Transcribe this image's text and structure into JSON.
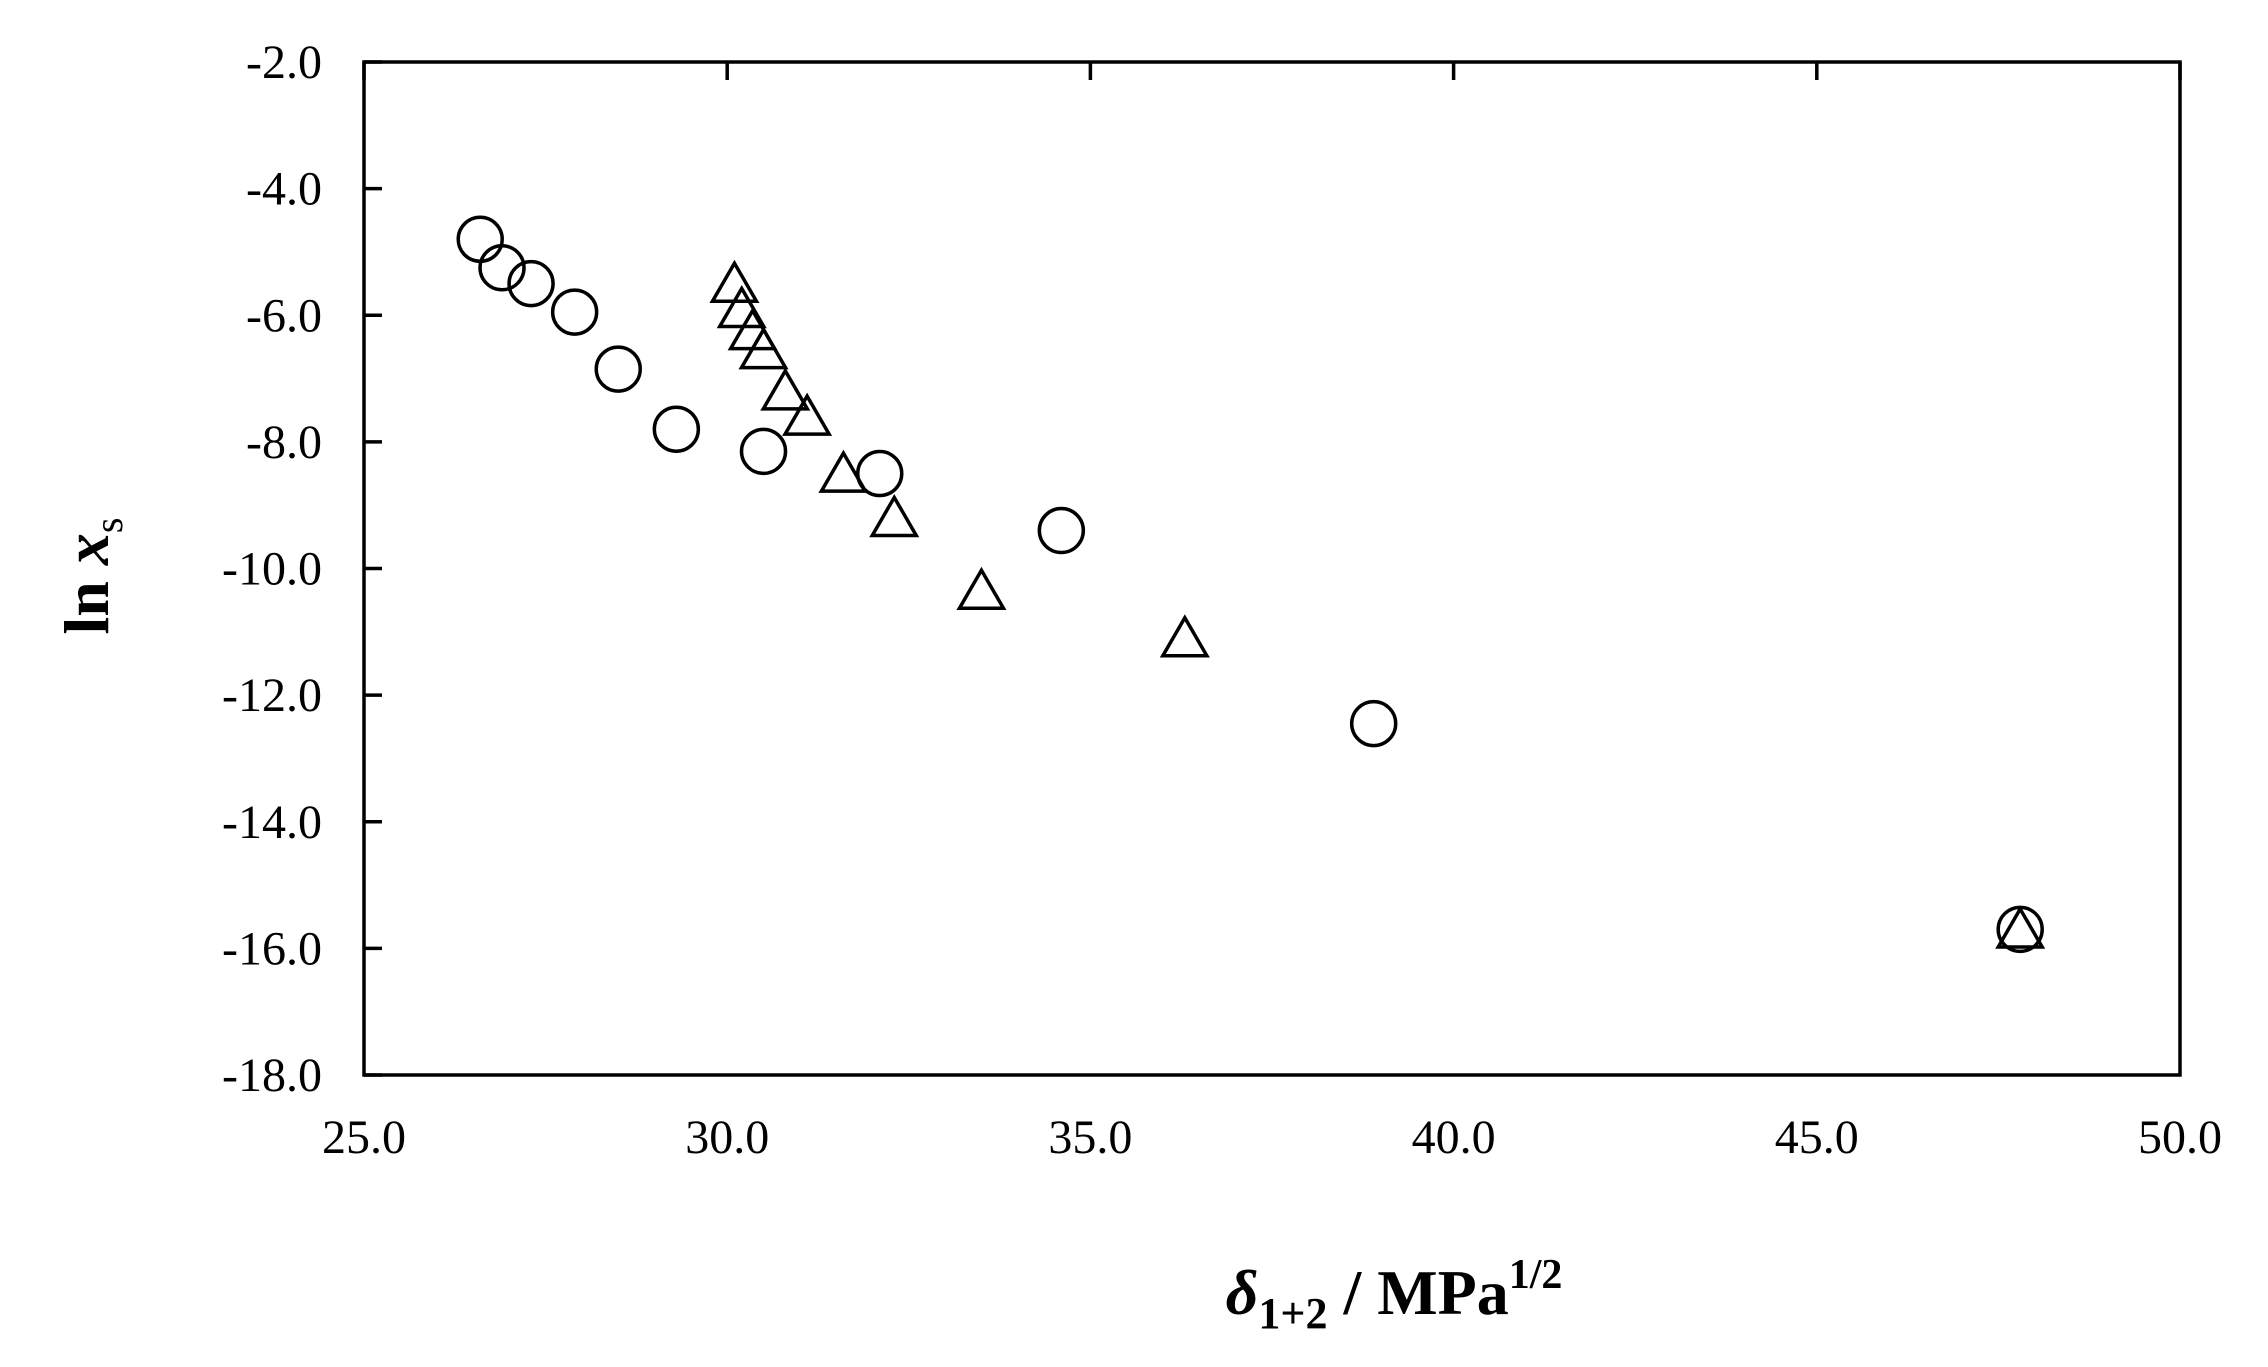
{
  "chart_data": {
    "type": "scatter",
    "xlabel": {
      "symbol": "δ",
      "subscript": "1+2",
      "unit_main": " / MPa",
      "unit_sup": "1/2"
    },
    "ylabel": {
      "main": "ln ",
      "var": "x",
      "subscript": "s"
    },
    "xlim": [
      25.0,
      50.0
    ],
    "ylim": [
      -18.0,
      -2.0
    ],
    "xticks": [
      "25.0",
      "30.0",
      "35.0",
      "40.0",
      "45.0",
      "50.0"
    ],
    "yticks": [
      "-2.0",
      "-4.0",
      "-6.0",
      "-8.0",
      "-10.0",
      "-12.0",
      "-14.0",
      "-16.0",
      "-18.0"
    ],
    "grid": false,
    "series": [
      {
        "marker": "circle",
        "points": [
          [
            26.6,
            -4.8
          ],
          [
            26.9,
            -5.25
          ],
          [
            27.3,
            -5.5
          ],
          [
            27.9,
            -5.95
          ],
          [
            28.5,
            -6.85
          ],
          [
            29.3,
            -7.8
          ],
          [
            30.5,
            -8.15
          ],
          [
            32.1,
            -8.5
          ],
          [
            34.6,
            -9.4
          ],
          [
            38.9,
            -12.45
          ],
          [
            47.8,
            -15.7
          ]
        ]
      },
      {
        "marker": "triangle",
        "points": [
          [
            30.1,
            -5.55
          ],
          [
            30.2,
            -5.95
          ],
          [
            30.35,
            -6.3
          ],
          [
            30.5,
            -6.6
          ],
          [
            30.8,
            -7.25
          ],
          [
            31.1,
            -7.65
          ],
          [
            31.6,
            -8.55
          ],
          [
            32.3,
            -9.25
          ],
          [
            33.5,
            -10.4
          ],
          [
            36.3,
            -11.15
          ],
          [
            47.8,
            -15.75
          ]
        ]
      }
    ]
  }
}
